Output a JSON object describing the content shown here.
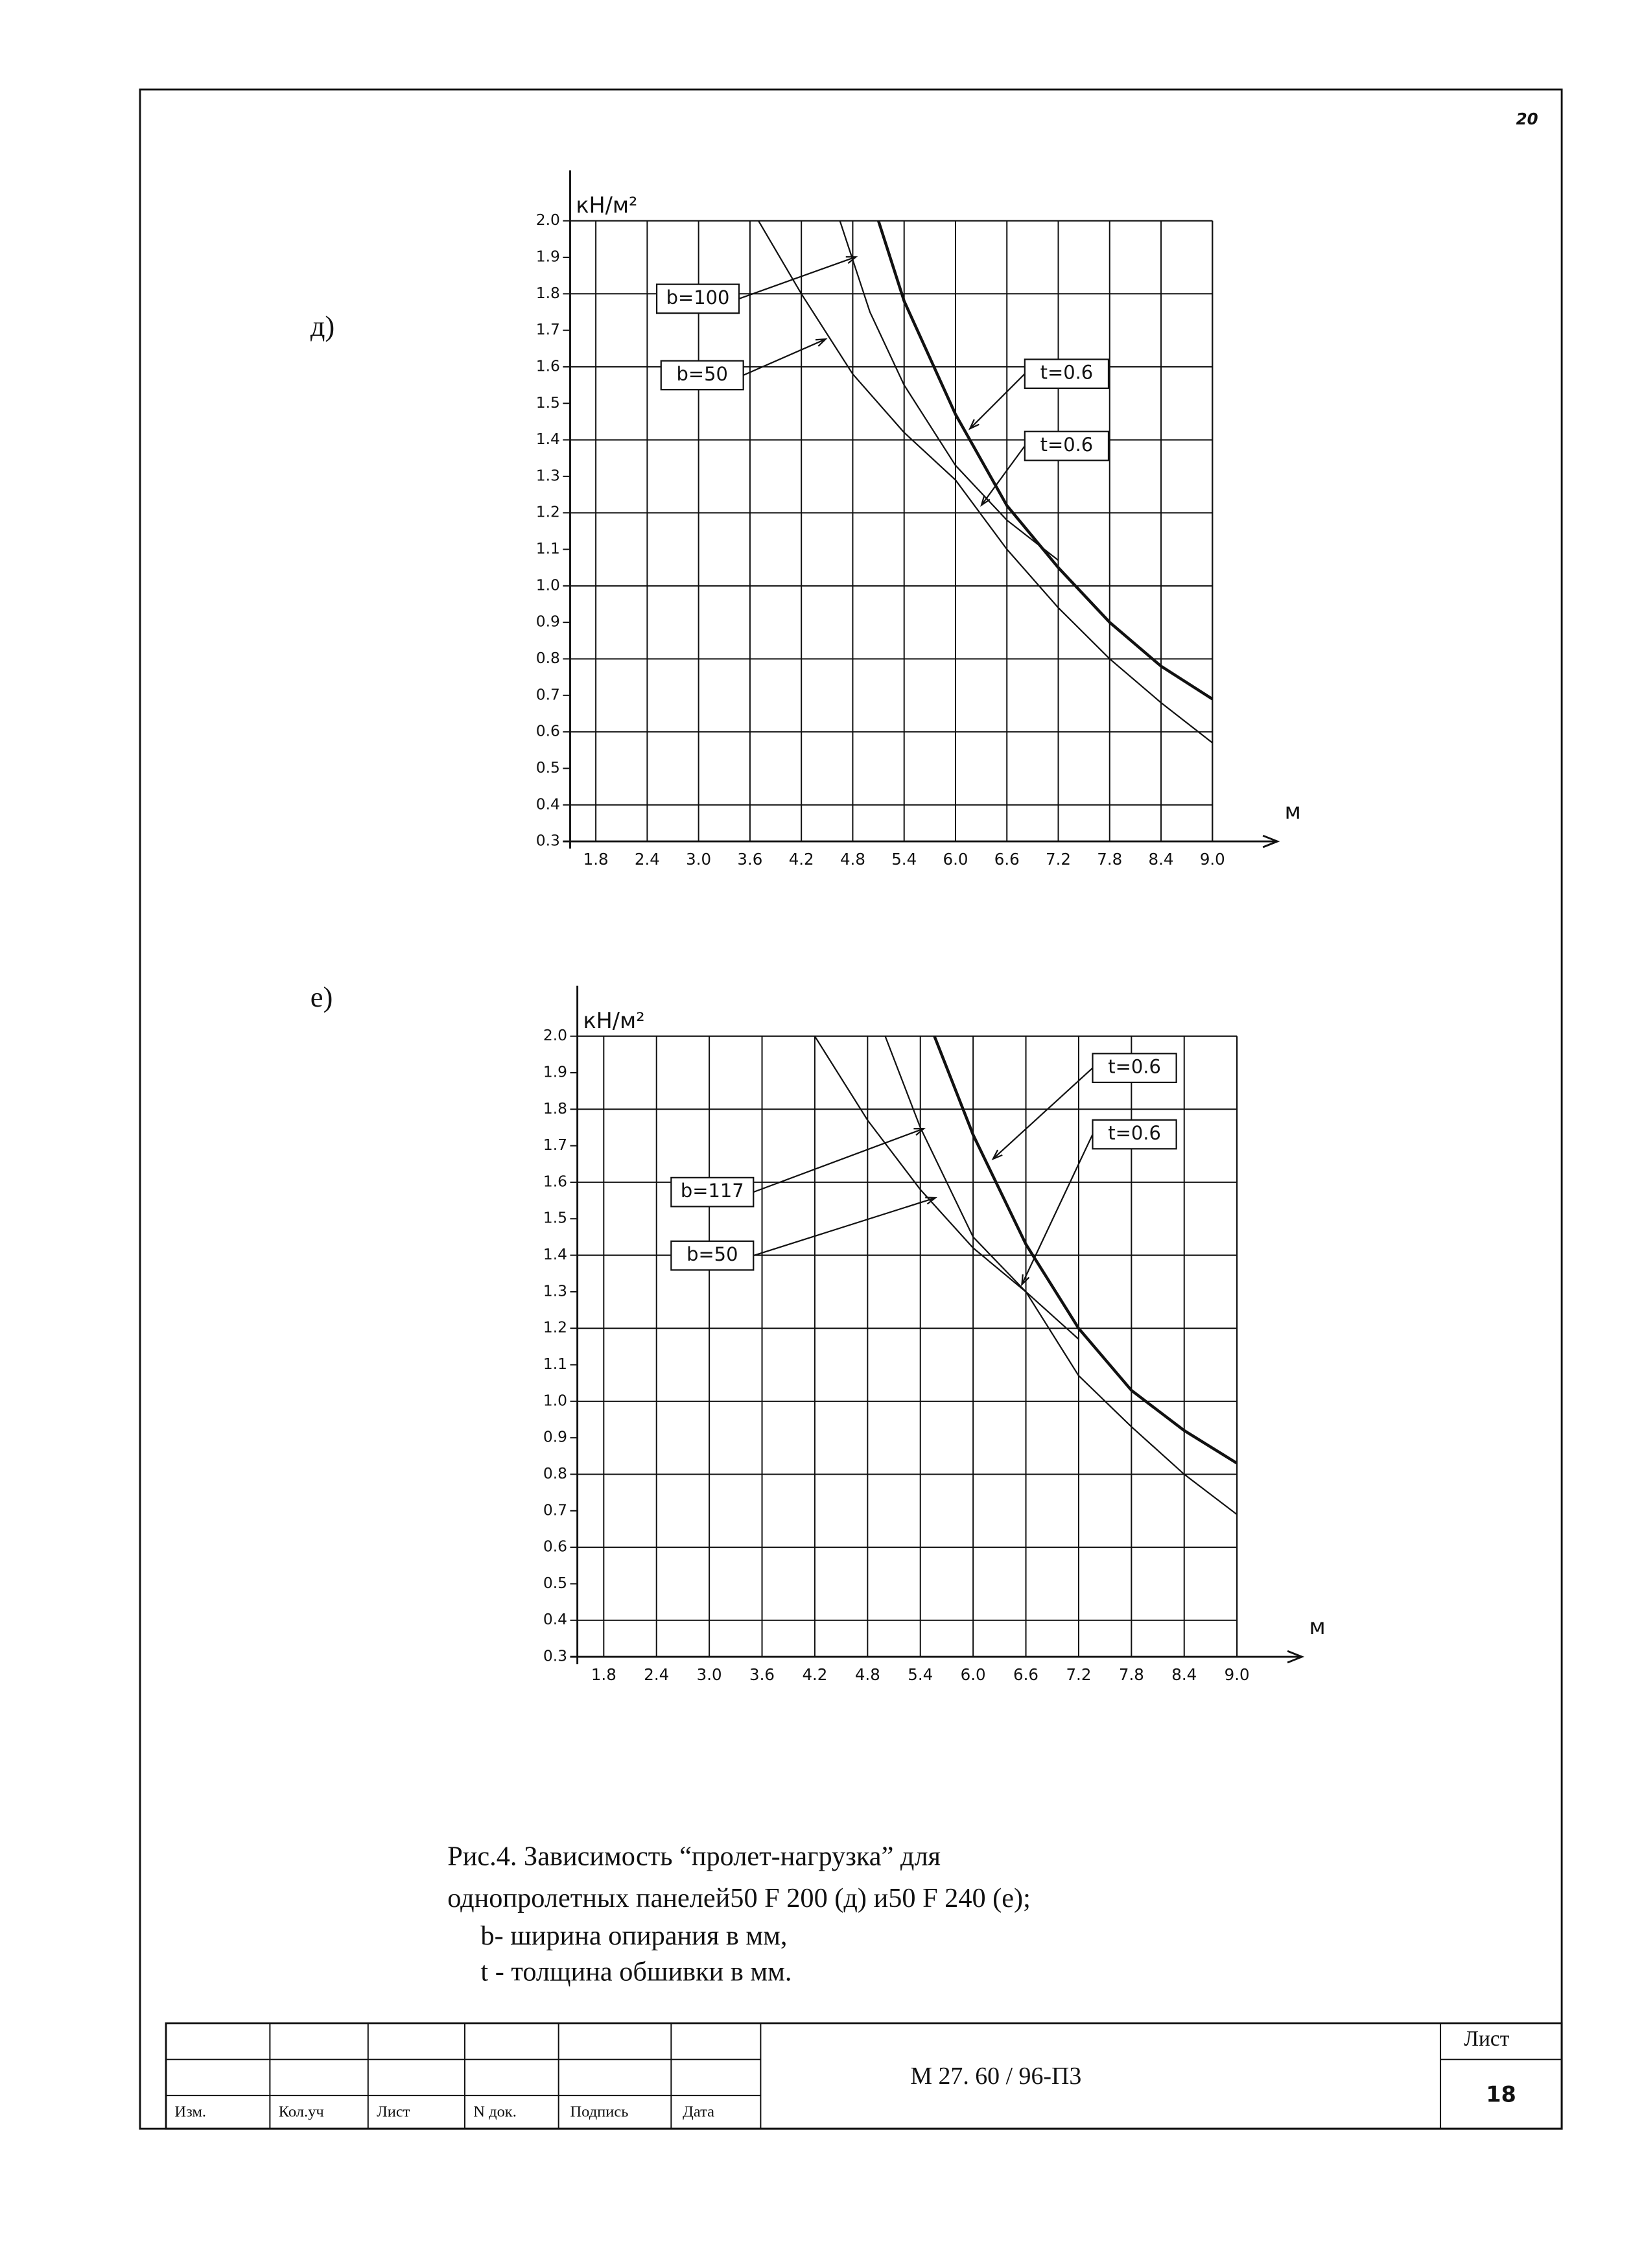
{
  "page_number": "20",
  "chart_data": [
    {
      "type": "line",
      "panel_label": "д)",
      "y_unit": "кН/м²",
      "x_unit": "м",
      "xlim": [
        1.5,
        9.0
      ],
      "ylim": [
        0.3,
        2.0
      ],
      "xticks": [
        1.8,
        2.4,
        {
          "value": 3,
          "label": "3.0"
        },
        3.6,
        4.2,
        4.8,
        5.4,
        {
          "value": 6,
          "label": "6.0"
        },
        6.6,
        7.2,
        7.8,
        8.4,
        {
          "value": 9,
          "label": "9.0"
        }
      ],
      "yticks": [
        0.3,
        0.4,
        0.5,
        0.6,
        0.7,
        0.8,
        0.9,
        {
          "value": 1,
          "label": "1.0"
        },
        1.1,
        1.2,
        1.3,
        1.4,
        1.5,
        1.6,
        1.7,
        1.8,
        1.9,
        {
          "value": 2,
          "label": "2.0"
        }
      ],
      "grid": true,
      "series": [
        {
          "color": "#111",
          "width": 1,
          "x": [
            3.7,
            4.2,
            4.8,
            5.4,
            6.0,
            6.6,
            7.2,
            7.8,
            8.4,
            9.0
          ],
          "values": [
            2.0,
            1.8,
            1.58,
            1.42,
            1.29,
            1.1,
            0.94,
            0.8,
            0.68,
            0.57
          ]
        },
        {
          "color": "#111",
          "width": 1,
          "x": [
            4.65,
            5.0,
            5.4,
            6.0,
            6.6,
            7.2
          ],
          "values": [
            2.0,
            1.75,
            1.55,
            1.33,
            1.18,
            1.07
          ]
        },
        {
          "color": "#111",
          "width": 2,
          "x": [
            5.1,
            5.4,
            6.0,
            6.6,
            7.2,
            7.8,
            8.4,
            9.0
          ],
          "values": [
            2.0,
            1.78,
            1.47,
            1.22,
            1.05,
            0.9,
            0.78,
            0.69
          ]
        }
      ],
      "annotations": [
        "b=100",
        "b=50",
        "t=0.6",
        "t=0.6"
      ]
    },
    {
      "type": "line",
      "panel_label": "е)",
      "y_unit": "кН/м²",
      "x_unit": "м",
      "xlim": [
        1.5,
        9.0
      ],
      "ylim": [
        0.3,
        2.0
      ],
      "xticks": [
        1.8,
        2.4,
        {
          "value": 3,
          "label": "3.0"
        },
        3.6,
        4.2,
        4.8,
        5.4,
        {
          "value": 6,
          "label": "6.0"
        },
        6.6,
        7.2,
        7.8,
        8.4,
        {
          "value": 9,
          "label": "9.0"
        }
      ],
      "yticks": [
        0.3,
        0.4,
        0.5,
        0.6,
        0.7,
        0.8,
        0.9,
        {
          "value": 1,
          "label": "1.0"
        },
        1.1,
        1.2,
        1.3,
        1.4,
        1.5,
        1.6,
        1.7,
        1.8,
        1.9,
        {
          "value": 2,
          "label": "2.0"
        }
      ],
      "grid": true,
      "series": [
        {
          "color": "#111",
          "width": 1,
          "x": [
            4.2,
            4.8,
            5.4,
            6.0,
            6.6,
            7.2,
            7.8,
            8.4,
            9.0
          ],
          "values": [
            2.0,
            1.77,
            1.58,
            1.42,
            1.3,
            1.07,
            0.93,
            0.8,
            0.69
          ]
        },
        {
          "color": "#111",
          "width": 1,
          "x": [
            5.0,
            5.4,
            6.0,
            6.6,
            7.2
          ],
          "values": [
            2.0,
            1.75,
            1.45,
            1.3,
            1.17
          ]
        },
        {
          "color": "#111",
          "width": 2,
          "x": [
            5.56,
            6.0,
            6.6,
            7.2,
            7.8,
            8.4,
            9.0
          ],
          "values": [
            2.0,
            1.73,
            1.43,
            1.2,
            1.03,
            0.92,
            0.83
          ]
        }
      ],
      "annotations": [
        "b=117",
        "b=50",
        "t=0.6",
        "t=0.6"
      ]
    }
  ],
  "caption": {
    "lines": [
      "Рис.4. Зависимость “пролет-нагрузка” для",
      "однопролетных панелей50 F 200 (д) и50 F 240 (е);",
      "b- ширина опирания в мм,",
      "t - толщина обшивки в мм."
    ]
  },
  "title_block": {
    "columns": [
      "Изм.",
      "Кол.уч",
      "Лист",
      "N док.",
      "Подпись",
      "Дата"
    ],
    "document_code": "М 27. 60 / 96-П3",
    "sheet_label": "Лист",
    "sheet_number": "18"
  }
}
